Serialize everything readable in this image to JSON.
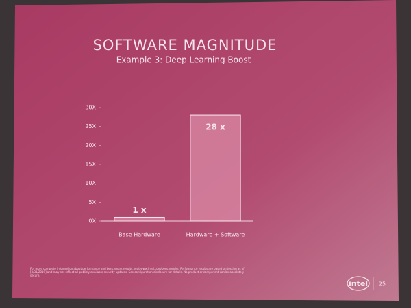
{
  "chart_data": {
    "type": "bar",
    "title": "SOFTWARE MAGNITUDE",
    "subtitle": "Example 3: Deep Learning Boost",
    "categories": [
      "Base Hardware",
      "Hardware + Software"
    ],
    "values": [
      1,
      28
    ],
    "value_labels": [
      "1 x",
      "28 x"
    ],
    "color": "#d98aa5",
    "ylim": [
      0,
      30
    ],
    "yticks": [
      {
        "value": 0,
        "label": "0X"
      },
      {
        "value": 5,
        "label": "5X"
      },
      {
        "value": 10,
        "label": "10X"
      },
      {
        "value": 15,
        "label": "15X"
      },
      {
        "value": 20,
        "label": "20X"
      },
      {
        "value": 25,
        "label": "25X"
      },
      {
        "value": 30,
        "label": "30X"
      }
    ]
  },
  "slide": {
    "footnote": "For more complete information about performance and benchmark results, visit www.intel.com/benchmarks. Performance results are based on testing as of [3/31/2019] and may not reflect all publicly available security updates. See configuration disclosure for details. No product or component can be absolutely secure.",
    "logo": "intel",
    "page_number": "25"
  }
}
